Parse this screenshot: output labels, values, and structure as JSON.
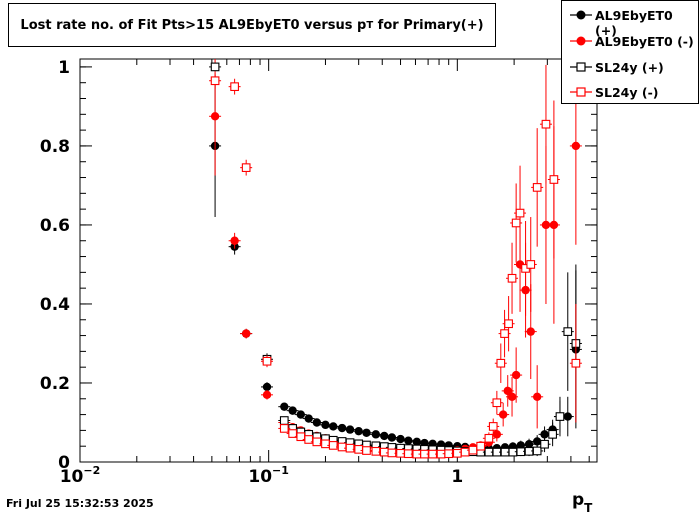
{
  "chart_data": {
    "type": "scatter",
    "title_main": "Lost rate no. of Fit Pts>15 AL9EbyET0 versus p",
    "title_sub": "T",
    "title_end": " for Primary(+)",
    "xlabel_main": "p",
    "xlabel_sub": "T",
    "x_scale": "log",
    "xlim": [
      0.01,
      5.5
    ],
    "ylim": [
      0,
      1.02
    ],
    "y_ticks": [
      "0",
      "0.2",
      "0.4",
      "0.6",
      "0.8",
      "1"
    ],
    "x_major_ticks": [
      {
        "value": 0.01,
        "base": "10",
        "exp": "−2"
      },
      {
        "value": 0.1,
        "base": "10",
        "exp": "−1"
      },
      {
        "value": 1,
        "base": "1",
        "exp": ""
      }
    ],
    "legend_position": "top-right",
    "series": [
      {
        "name": "AL9EbyET0 (+)",
        "color": "#000000",
        "marker": "filled-circle",
        "points": [
          [
            0.052,
            0.8,
            0.18
          ],
          [
            0.066,
            0.545,
            0.02
          ],
          [
            0.076,
            0.325,
            0.012
          ],
          [
            0.098,
            0.19,
            0.012
          ],
          [
            0.121,
            0.14,
            0.008
          ],
          [
            0.134,
            0.13,
            0.006
          ],
          [
            0.148,
            0.12,
            0.005
          ],
          [
            0.163,
            0.11,
            0.005
          ],
          [
            0.18,
            0.1,
            0.005
          ],
          [
            0.2,
            0.094,
            0.004
          ],
          [
            0.22,
            0.09,
            0.004
          ],
          [
            0.245,
            0.086,
            0.004
          ],
          [
            0.27,
            0.082,
            0.004
          ],
          [
            0.3,
            0.078,
            0.004
          ],
          [
            0.33,
            0.074,
            0.004
          ],
          [
            0.37,
            0.07,
            0.004
          ],
          [
            0.41,
            0.066,
            0.004
          ],
          [
            0.45,
            0.062,
            0.004
          ],
          [
            0.5,
            0.058,
            0.004
          ],
          [
            0.55,
            0.054,
            0.004
          ],
          [
            0.61,
            0.051,
            0.004
          ],
          [
            0.67,
            0.048,
            0.004
          ],
          [
            0.74,
            0.046,
            0.004
          ],
          [
            0.82,
            0.044,
            0.004
          ],
          [
            0.9,
            0.042,
            0.005
          ],
          [
            1.0,
            0.04,
            0.005
          ],
          [
            1.1,
            0.038,
            0.006
          ],
          [
            1.21,
            0.036,
            0.006
          ],
          [
            1.33,
            0.035,
            0.007
          ],
          [
            1.47,
            0.034,
            0.008
          ],
          [
            1.62,
            0.035,
            0.009
          ],
          [
            1.79,
            0.037,
            0.01
          ],
          [
            1.97,
            0.039,
            0.011
          ],
          [
            2.17,
            0.042,
            0.012
          ],
          [
            2.4,
            0.045,
            0.014
          ],
          [
            2.65,
            0.052,
            0.016
          ],
          [
            2.9,
            0.07,
            0.02
          ],
          [
            3.2,
            0.082,
            0.025
          ],
          [
            3.5,
            0.115,
            0.04
          ],
          [
            3.85,
            0.115,
            0.05
          ],
          [
            4.25,
            0.285,
            0.2
          ]
        ]
      },
      {
        "name": "AL9EbyET0 (-)",
        "color": "#ff0000",
        "marker": "filled-circle",
        "points": [
          [
            0.052,
            0.875,
            0.15
          ],
          [
            0.066,
            0.56,
            0.02
          ],
          [
            0.076,
            0.325,
            0.012
          ],
          [
            0.098,
            0.17,
            0.012
          ],
          [
            0.121,
            0.1,
            0.008
          ],
          [
            0.134,
            0.088,
            0.006
          ],
          [
            0.148,
            0.08,
            0.005
          ],
          [
            0.163,
            0.072,
            0.005
          ],
          [
            0.18,
            0.066,
            0.005
          ],
          [
            0.2,
            0.06,
            0.004
          ],
          [
            0.22,
            0.055,
            0.004
          ],
          [
            0.245,
            0.05,
            0.004
          ],
          [
            0.27,
            0.046,
            0.004
          ],
          [
            0.3,
            0.042,
            0.004
          ],
          [
            0.33,
            0.039,
            0.004
          ],
          [
            0.37,
            0.036,
            0.004
          ],
          [
            0.41,
            0.034,
            0.004
          ],
          [
            0.45,
            0.032,
            0.004
          ],
          [
            0.5,
            0.03,
            0.004
          ],
          [
            0.55,
            0.029,
            0.004
          ],
          [
            0.61,
            0.028,
            0.004
          ],
          [
            0.67,
            0.027,
            0.004
          ],
          [
            0.74,
            0.027,
            0.004
          ],
          [
            0.82,
            0.027,
            0.005
          ],
          [
            0.9,
            0.028,
            0.005
          ],
          [
            1.0,
            0.03,
            0.006
          ],
          [
            1.1,
            0.033,
            0.007
          ],
          [
            1.21,
            0.037,
            0.008
          ],
          [
            1.33,
            0.042,
            0.01
          ],
          [
            1.47,
            0.05,
            0.012
          ],
          [
            1.62,
            0.07,
            0.018
          ],
          [
            1.75,
            0.12,
            0.03
          ],
          [
            1.85,
            0.18,
            0.04
          ],
          [
            1.95,
            0.165,
            0.05
          ],
          [
            2.05,
            0.22,
            0.07
          ],
          [
            2.15,
            0.5,
            0.12
          ],
          [
            2.3,
            0.435,
            0.12
          ],
          [
            2.45,
            0.33,
            0.12
          ],
          [
            2.65,
            0.165,
            0.08
          ],
          [
            2.95,
            0.6,
            0.2
          ],
          [
            3.25,
            0.6,
            0.25
          ],
          [
            4.25,
            0.8,
            0.25
          ]
        ]
      },
      {
        "name": "SL24y (+)",
        "color": "#000000",
        "marker": "open-square",
        "points": [
          [
            0.052,
            1.0,
            0.0
          ],
          [
            0.098,
            0.26,
            0.015
          ],
          [
            0.121,
            0.105,
            0.01
          ],
          [
            0.134,
            0.085,
            0.006
          ],
          [
            0.148,
            0.076,
            0.005
          ],
          [
            0.163,
            0.07,
            0.005
          ],
          [
            0.18,
            0.064,
            0.005
          ],
          [
            0.2,
            0.059,
            0.004
          ],
          [
            0.22,
            0.055,
            0.004
          ],
          [
            0.245,
            0.052,
            0.004
          ],
          [
            0.27,
            0.049,
            0.004
          ],
          [
            0.3,
            0.046,
            0.004
          ],
          [
            0.33,
            0.043,
            0.004
          ],
          [
            0.37,
            0.041,
            0.004
          ],
          [
            0.41,
            0.039,
            0.004
          ],
          [
            0.45,
            0.037,
            0.004
          ],
          [
            0.5,
            0.035,
            0.004
          ],
          [
            0.55,
            0.034,
            0.004
          ],
          [
            0.61,
            0.033,
            0.004
          ],
          [
            0.67,
            0.032,
            0.004
          ],
          [
            0.74,
            0.031,
            0.004
          ],
          [
            0.82,
            0.03,
            0.004
          ],
          [
            0.9,
            0.029,
            0.005
          ],
          [
            1.0,
            0.028,
            0.005
          ],
          [
            1.1,
            0.027,
            0.005
          ],
          [
            1.21,
            0.026,
            0.006
          ],
          [
            1.33,
            0.025,
            0.006
          ],
          [
            1.47,
            0.025,
            0.007
          ],
          [
            1.62,
            0.025,
            0.008
          ],
          [
            1.79,
            0.025,
            0.009
          ],
          [
            1.97,
            0.025,
            0.01
          ],
          [
            2.17,
            0.026,
            0.011
          ],
          [
            2.4,
            0.027,
            0.012
          ],
          [
            2.65,
            0.028,
            0.013
          ],
          [
            2.9,
            0.045,
            0.02
          ],
          [
            3.2,
            0.07,
            0.03
          ],
          [
            3.5,
            0.115,
            0.05
          ],
          [
            3.85,
            0.33,
            0.15
          ],
          [
            4.25,
            0.3,
            0.2
          ]
        ]
      },
      {
        "name": "SL24y (-)",
        "color": "#ff0000",
        "marker": "open-square",
        "points": [
          [
            0.052,
            0.965,
            0.02
          ],
          [
            0.066,
            0.95,
            0.02
          ],
          [
            0.076,
            0.745,
            0.02
          ],
          [
            0.098,
            0.255,
            0.015
          ],
          [
            0.121,
            0.085,
            0.01
          ],
          [
            0.134,
            0.072,
            0.006
          ],
          [
            0.148,
            0.064,
            0.005
          ],
          [
            0.163,
            0.057,
            0.005
          ],
          [
            0.18,
            0.051,
            0.005
          ],
          [
            0.2,
            0.046,
            0.004
          ],
          [
            0.22,
            0.042,
            0.004
          ],
          [
            0.245,
            0.038,
            0.004
          ],
          [
            0.27,
            0.035,
            0.004
          ],
          [
            0.3,
            0.032,
            0.004
          ],
          [
            0.33,
            0.029,
            0.004
          ],
          [
            0.37,
            0.027,
            0.004
          ],
          [
            0.41,
            0.025,
            0.004
          ],
          [
            0.45,
            0.023,
            0.004
          ],
          [
            0.5,
            0.022,
            0.004
          ],
          [
            0.55,
            0.021,
            0.004
          ],
          [
            0.61,
            0.02,
            0.004
          ],
          [
            0.67,
            0.02,
            0.004
          ],
          [
            0.74,
            0.02,
            0.004
          ],
          [
            0.82,
            0.02,
            0.005
          ],
          [
            0.9,
            0.021,
            0.005
          ],
          [
            1.0,
            0.022,
            0.006
          ],
          [
            1.1,
            0.025,
            0.007
          ],
          [
            1.21,
            0.03,
            0.008
          ],
          [
            1.33,
            0.04,
            0.01
          ],
          [
            1.47,
            0.06,
            0.015
          ],
          [
            1.55,
            0.09,
            0.02
          ],
          [
            1.62,
            0.15,
            0.03
          ],
          [
            1.7,
            0.25,
            0.05
          ],
          [
            1.78,
            0.325,
            0.06
          ],
          [
            1.87,
            0.35,
            0.07
          ],
          [
            1.95,
            0.465,
            0.09
          ],
          [
            2.05,
            0.605,
            0.1
          ],
          [
            2.15,
            0.63,
            0.12
          ],
          [
            2.3,
            0.49,
            0.12
          ],
          [
            2.45,
            0.5,
            0.12
          ],
          [
            2.65,
            0.695,
            0.15
          ],
          [
            2.95,
            0.855,
            0.15
          ],
          [
            3.25,
            0.715,
            0.2
          ],
          [
            4.25,
            0.25,
            0.15
          ]
        ]
      }
    ]
  },
  "footer": {
    "timestamp": "Fri Jul 25 15:32:53 2025"
  }
}
